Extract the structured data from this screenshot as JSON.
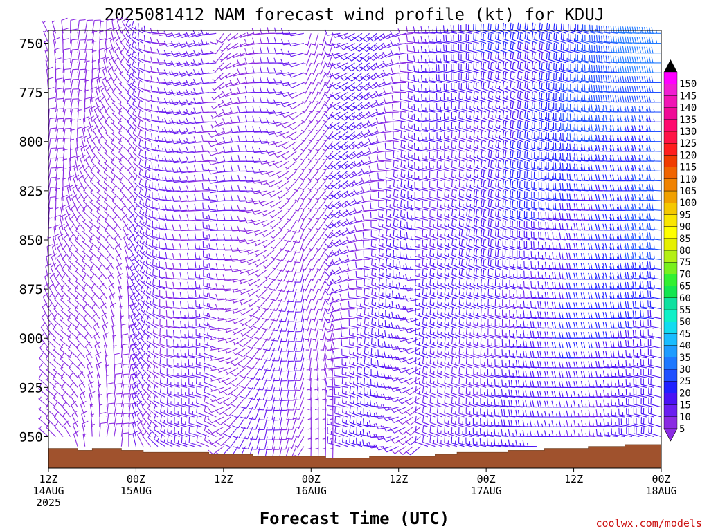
{
  "chart_data": {
    "type": "wind barb time-height profile",
    "title": "2025081412 NAM forecast wind profile (kt) for KDUJ",
    "xlabel": "Forecast Time (UTC)",
    "ylabel": "",
    "watermark": "coolwx.com/models",
    "y_axis": {
      "units": "hPa",
      "inverted": true,
      "ticks": [
        750,
        775,
        800,
        825,
        850,
        875,
        900,
        925,
        950
      ]
    },
    "x_axis": {
      "units": "hours from 2025-08-14 12Z",
      "range": [
        0,
        84
      ],
      "ticks": [
        {
          "hour": 0,
          "line1": "12Z",
          "line2": "14AUG",
          "line3": "2025"
        },
        {
          "hour": 12,
          "line1": "00Z",
          "line2": "15AUG",
          "line3": ""
        },
        {
          "hour": 24,
          "line1": "12Z",
          "line2": "",
          "line3": ""
        },
        {
          "hour": 36,
          "line1": "00Z",
          "line2": "16AUG",
          "line3": ""
        },
        {
          "hour": 48,
          "line1": "12Z",
          "line2": "",
          "line3": ""
        },
        {
          "hour": 60,
          "line1": "00Z",
          "line2": "17AUG",
          "line3": ""
        },
        {
          "hour": 72,
          "line1": "12Z",
          "line2": "",
          "line3": ""
        },
        {
          "hour": 84,
          "line1": "00Z",
          "line2": "18AUG",
          "line3": ""
        }
      ]
    },
    "legend": {
      "placement": "right",
      "unit": "kt",
      "levels": [
        5,
        10,
        15,
        20,
        25,
        30,
        35,
        40,
        45,
        50,
        55,
        60,
        65,
        70,
        75,
        80,
        85,
        90,
        95,
        100,
        105,
        110,
        115,
        120,
        125,
        130,
        135,
        140,
        145,
        150
      ],
      "colors": [
        "#8a2be2",
        "#6a1ef0",
        "#4a12f5",
        "#2020ff",
        "#2050ff",
        "#1e78ff",
        "#1e9cff",
        "#19bdff",
        "#12dcf0",
        "#0ff0c8",
        "#0fe1a0",
        "#14e650",
        "#32f032",
        "#78f01e",
        "#b4f014",
        "#e6f000",
        "#ffff00",
        "#fae600",
        "#f5c800",
        "#f0a000",
        "#f08200",
        "#f06400",
        "#f03c00",
        "#ff1e1e",
        "#ff1446",
        "#ff0a6e",
        "#f00a96",
        "#f014b4",
        "#f01ed2",
        "#ff00ff"
      ]
    },
    "pressure_levels": [
      745,
      750,
      755,
      760,
      765,
      770,
      775,
      780,
      785,
      790,
      795,
      800,
      805,
      810,
      815,
      820,
      825,
      830,
      835,
      840,
      845,
      850,
      855,
      860,
      865,
      870,
      875,
      880,
      885,
      890,
      895,
      900,
      905,
      910,
      915,
      920,
      925,
      930,
      935,
      940,
      945,
      950,
      955,
      960
    ],
    "forecast_hours": [
      0,
      1,
      2,
      3,
      4,
      5,
      6,
      7,
      8,
      9,
      10,
      11,
      12,
      13,
      14,
      15,
      16,
      17,
      18,
      19,
      20,
      21,
      22,
      23,
      24,
      25,
      26,
      27,
      28,
      29,
      30,
      31,
      32,
      33,
      34,
      35,
      36,
      37,
      38,
      39,
      40,
      41,
      42,
      43,
      44,
      45,
      46,
      47,
      48,
      49,
      50,
      51,
      52,
      53,
      54,
      55,
      56,
      57,
      58,
      59,
      60,
      61,
      62,
      63,
      64,
      65,
      66,
      67,
      68,
      69,
      70,
      71,
      72,
      73,
      74,
      75,
      76,
      77,
      78,
      79,
      80,
      81,
      82,
      83,
      84
    ],
    "surface_pressure": [
      [
        0,
        956
      ],
      [
        4,
        956
      ],
      [
        4,
        957
      ],
      [
        6,
        957
      ],
      [
        6,
        956
      ],
      [
        10,
        956
      ],
      [
        10,
        957
      ],
      [
        13,
        957
      ],
      [
        13,
        958
      ],
      [
        22,
        958
      ],
      [
        22,
        959
      ],
      [
        28,
        959
      ],
      [
        28,
        960
      ],
      [
        38,
        960
      ],
      [
        38,
        961
      ],
      [
        44,
        961
      ],
      [
        44,
        960
      ],
      [
        53,
        960
      ],
      [
        53,
        959
      ],
      [
        56,
        959
      ],
      [
        56,
        958
      ],
      [
        63,
        958
      ],
      [
        63,
        957
      ],
      [
        68,
        957
      ],
      [
        68,
        956
      ],
      [
        74,
        956
      ],
      [
        74,
        955
      ],
      [
        79,
        955
      ],
      [
        79,
        954
      ],
      [
        84,
        954
      ]
    ]
  }
}
